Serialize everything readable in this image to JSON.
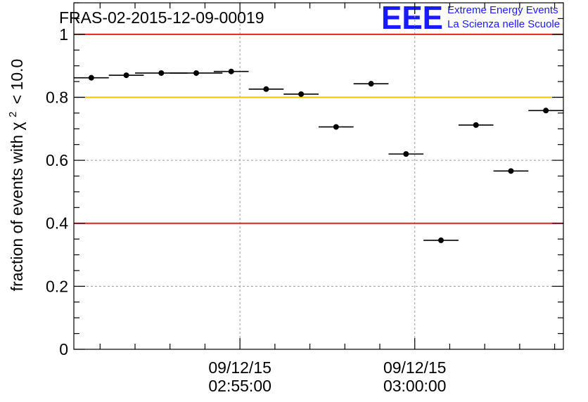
{
  "chart_data": {
    "type": "scatter",
    "title": "FRAS-02-2015-12-09-00019",
    "ylabel": "fraction of events with",
    "ylabel_chi": "χ",
    "ylabel_exp": "2",
    "ylabel_tail": "< 10.0",
    "xlabel": "",
    "ylim": [
      0,
      1.1
    ],
    "xlim": [
      "02:50:15",
      "03:04:15"
    ],
    "grid": true,
    "y_ticks": [
      {
        "value": 0,
        "label": "0"
      },
      {
        "value": 0.2,
        "label": "0.2"
      },
      {
        "value": 0.4,
        "label": "0.4"
      },
      {
        "value": 0.6,
        "label": "0.6"
      },
      {
        "value": 0.8,
        "label": "0.8"
      },
      {
        "value": 1,
        "label": "1"
      }
    ],
    "x_ticks": [
      {
        "time": "02:55:00",
        "date": "09/12/15",
        "label": "02:55:00"
      },
      {
        "time": "03:00:00",
        "date": "09/12/15",
        "label": "03:00:00"
      }
    ],
    "reference_lines": [
      {
        "y": 1.0,
        "color": "#e8201c"
      },
      {
        "y": 0.8,
        "color": "#f5c000"
      },
      {
        "y": 0.4,
        "color": "#e8201c"
      }
    ],
    "points": [
      {
        "t": "02:50:45",
        "y": 0.862,
        "half_width_s": 30
      },
      {
        "t": "02:51:45",
        "y": 0.87,
        "half_width_s": 30
      },
      {
        "t": "02:52:45",
        "y": 0.877,
        "half_width_s": 45
      },
      {
        "t": "02:53:45",
        "y": 0.877,
        "half_width_s": 45
      },
      {
        "t": "02:54:45",
        "y": 0.882,
        "half_width_s": 30
      },
      {
        "t": "02:55:45",
        "y": 0.826,
        "half_width_s": 30
      },
      {
        "t": "02:56:45",
        "y": 0.81,
        "half_width_s": 30
      },
      {
        "t": "02:57:45",
        "y": 0.706,
        "half_width_s": 30
      },
      {
        "t": "02:58:45",
        "y": 0.843,
        "half_width_s": 30
      },
      {
        "t": "02:59:45",
        "y": 0.62,
        "half_width_s": 30
      },
      {
        "t": "03:00:45",
        "y": 0.346,
        "half_width_s": 30
      },
      {
        "t": "03:01:45",
        "y": 0.712,
        "half_width_s": 30
      },
      {
        "t": "03:02:45",
        "y": 0.566,
        "half_width_s": 30
      },
      {
        "t": "03:03:45",
        "y": 0.758,
        "half_width_s": 30
      }
    ],
    "marker_color": "#000000"
  },
  "logo": {
    "mark": "EEE",
    "line1": "Extreme Energy Events",
    "line2": "La Scienza nelle Scuole",
    "color": "#1a1aff"
  }
}
